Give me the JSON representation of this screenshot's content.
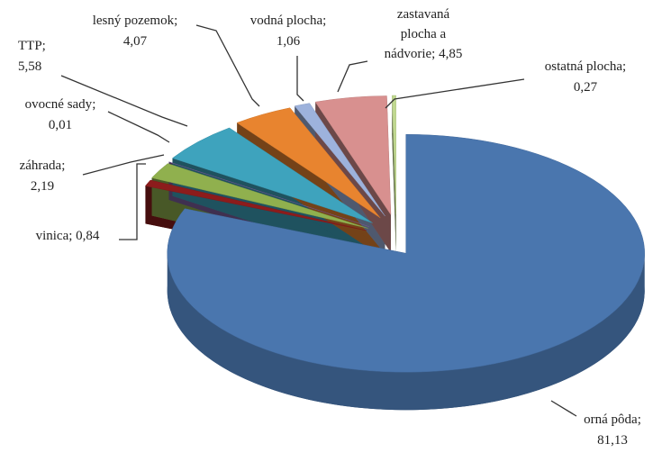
{
  "chart_data": {
    "type": "pie3d",
    "categories": [
      "orná pôda",
      "vinica",
      "záhrada",
      "ovocné sady",
      "TTP",
      "lesný pozemok",
      "vodná plocha",
      "zastavaná plocha a nádvorie",
      "ostatná plocha"
    ],
    "values": [
      81.13,
      0.84,
      2.19,
      0.01,
      5.58,
      4.07,
      1.06,
      4.85,
      0.27
    ],
    "value_labels": [
      "81,13",
      "0,84",
      "2,19",
      "0,01",
      "5,58",
      "4,07",
      "1,06",
      "4,85",
      "0,27"
    ],
    "label_separator": ";",
    "colors": [
      "#4a76ae",
      "#8c1c1c",
      "#90b04e",
      "#7d5fa0",
      "#3ea3bd",
      "#e8842f",
      "#9db2dc",
      "#d8908f",
      "#c0d890"
    ]
  }
}
